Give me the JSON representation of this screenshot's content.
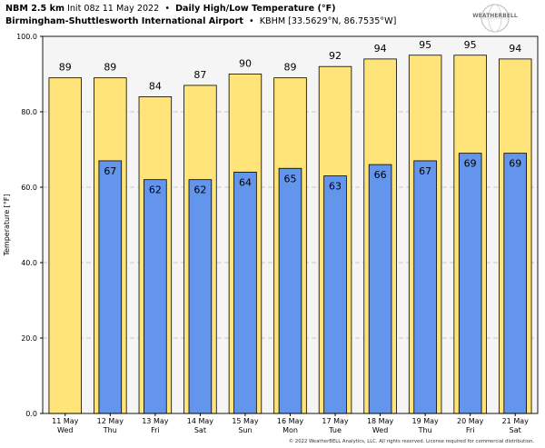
{
  "header": {
    "line1": {
      "model": "NBM 2.5 km",
      "init": "Init 08z 11 May 2022",
      "title": "Daily High/Low Temperature (°F)"
    },
    "line2": {
      "station": "Birmingham-Shuttlesworth International Airport",
      "details": "KBHM [33.5629°N, 86.7535°W]"
    }
  },
  "logo": {
    "text": "WEATHERBELL",
    "icon": "weatherbell-globe-logo"
  },
  "copyright": "© 2022 WeatherBELL Analytics, LLC. All rights reserved. License required for commercial distribution.",
  "colors": {
    "high_fill": "#ffe47a",
    "low_fill": "#6495ed",
    "plot_background": "#f5f5f5",
    "grid": "#c9c9c9"
  },
  "chart_data": {
    "type": "bar",
    "ylabel": "Temperature [°F]",
    "ylim": [
      0,
      100
    ],
    "yticks": [
      "0.0",
      "20.0",
      "40.0",
      "60.0",
      "80.0",
      "100.0"
    ],
    "grid": "horizontal dashed",
    "categories": [
      {
        "date": "11 May",
        "day": "Wed"
      },
      {
        "date": "12 May",
        "day": "Thu"
      },
      {
        "date": "13 May",
        "day": "Fri"
      },
      {
        "date": "14 May",
        "day": "Sat"
      },
      {
        "date": "15 May",
        "day": "Sun"
      },
      {
        "date": "16 May",
        "day": "Mon"
      },
      {
        "date": "17 May",
        "day": "Tue"
      },
      {
        "date": "18 May",
        "day": "Wed"
      },
      {
        "date": "19 May",
        "day": "Thu"
      },
      {
        "date": "20 May",
        "day": "Fri"
      },
      {
        "date": "21 May",
        "day": "Sat"
      }
    ],
    "series": [
      {
        "values": [
          89,
          89,
          84,
          87,
          90,
          89,
          92,
          94,
          95,
          95,
          94
        ],
        "labels": [
          "89",
          "89",
          "84",
          "87",
          "90",
          "89",
          "92",
          "94",
          "95",
          "95",
          "94"
        ]
      },
      {
        "values": [
          null,
          67,
          62,
          62,
          64,
          65,
          63,
          66,
          67,
          69,
          69
        ],
        "labels": [
          "",
          "67",
          "62",
          "62",
          "64",
          "65",
          "63",
          "66",
          "67",
          "69",
          "69"
        ]
      }
    ]
  }
}
